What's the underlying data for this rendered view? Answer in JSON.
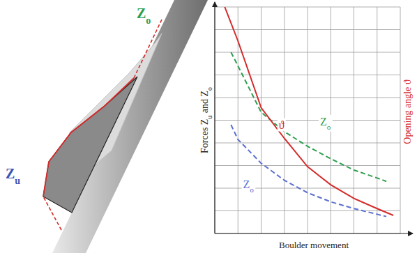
{
  "chart_data": {
    "type": "line",
    "xlabel": "Boulder movement",
    "ylabel": "Forces Zu and Zo",
    "y2label": "Opening angle ϑ",
    "xlim": [
      0,
      8
    ],
    "ylim": [
      0,
      10
    ],
    "y2lim": [
      0,
      10
    ],
    "xticks": [
      0,
      1,
      2,
      3,
      4,
      5,
      6,
      7,
      8
    ],
    "yticks": [
      0,
      1,
      2,
      3,
      4,
      5,
      6,
      7,
      8,
      9,
      10
    ],
    "grid": true,
    "tick_labels": false,
    "series": [
      {
        "name": "Zo",
        "color": "#2e9e4f",
        "line_style": "dashed",
        "x": [
          0.7,
          1,
          2,
          3,
          4,
          5,
          6,
          7,
          7.4
        ],
        "values": [
          8.0,
          7.4,
          5.35,
          4.5,
          3.85,
          3.3,
          2.8,
          2.45,
          2.3
        ]
      },
      {
        "name": "ϑ",
        "color": "#d42b2b",
        "line_style": "solid",
        "axis": "y2",
        "x": [
          0.43,
          1,
          2,
          3,
          4,
          5,
          6,
          7,
          7.7
        ],
        "values": [
          10,
          8.5,
          5.55,
          4.2,
          2.95,
          2.15,
          1.55,
          1.1,
          0.8
        ]
      },
      {
        "name": "Zo",
        "color": "#5b6fcf",
        "line_style": "dashed",
        "x": [
          0.7,
          1,
          2,
          3,
          4,
          5,
          6,
          7,
          7.4
        ],
        "values": [
          4.8,
          4.15,
          3.1,
          2.35,
          1.8,
          1.4,
          1.1,
          0.85,
          0.75
        ]
      }
    ]
  },
  "diagram": {
    "top_label": "Zo",
    "bottom_label": "Zu"
  }
}
